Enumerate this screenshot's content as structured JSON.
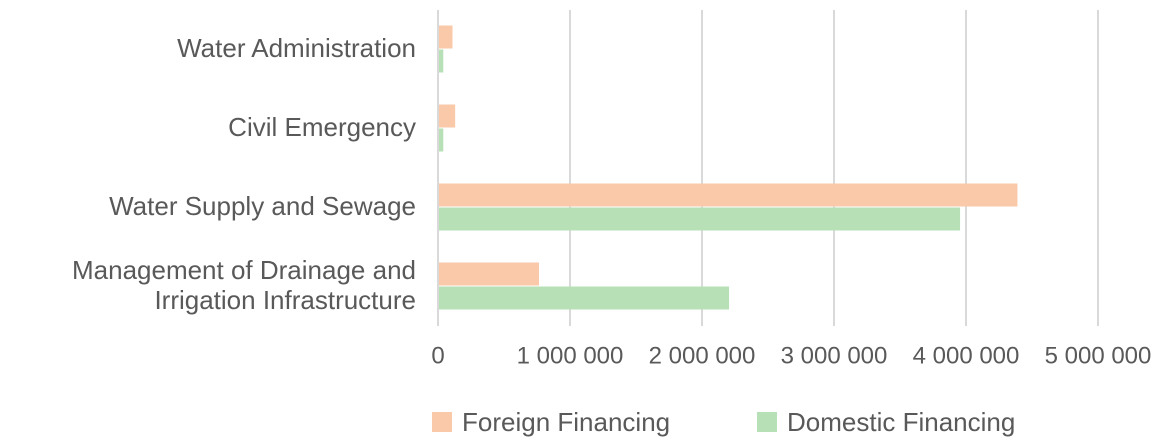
{
  "chart_data": {
    "type": "barh",
    "categories": [
      "Water Administration",
      "Civil Emergency",
      "Water Supply and Sewage",
      "Management of Drainage and Irrigation Infrastructure"
    ],
    "series": [
      {
        "name": "Foreign Financing",
        "color": "#f9c9a9",
        "values": [
          110000,
          130000,
          4390000,
          765000
        ]
      },
      {
        "name": "Domestic Financing",
        "color": "#b7e0b7",
        "values": [
          40000,
          40000,
          3955000,
          2205000
        ]
      }
    ],
    "xlim": [
      0,
      5000000
    ],
    "xticks": [
      0,
      {
        "value": 1000000,
        "label": "1 000 000"
      },
      {
        "value": 2000000,
        "label": "2 000 000"
      },
      {
        "value": 3000000,
        "label": "3 000 000"
      },
      {
        "value": 4000000,
        "label": "4 000 000"
      },
      {
        "value": 5000000,
        "label": "5 000 000"
      }
    ],
    "grid": true,
    "legend": "bottom"
  }
}
